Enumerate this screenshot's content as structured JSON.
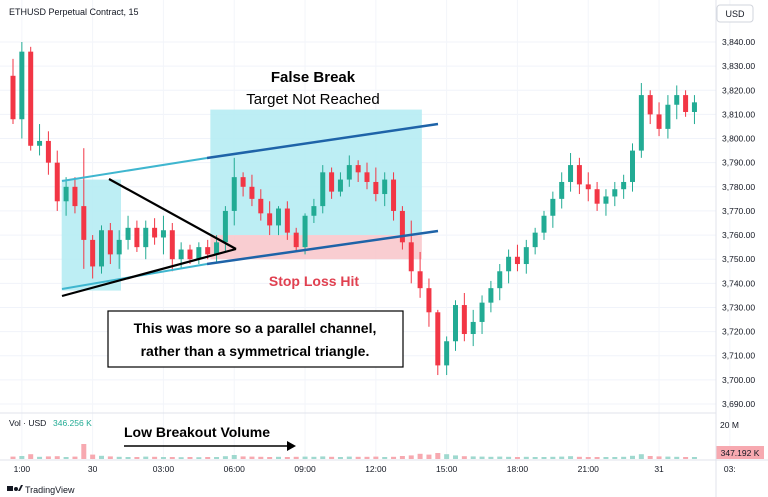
{
  "header": {
    "symbol": "ETHUSD Perpetual Contract, 15",
    "currency_button": "USD"
  },
  "volume_panel": {
    "label": "Vol · USD",
    "value": "346.256 K",
    "axis_label": "20 M",
    "current_badge": "347.192 K"
  },
  "annotations": {
    "false_break_title": "False Break",
    "false_break_subtitle": "Target Not Reached",
    "stop_loss": "Stop Loss Hit",
    "note_line1": "This was more so a parallel channel,",
    "note_line2": "rather than a symmetrical triangle.",
    "low_volume": "Low Breakout Volume"
  },
  "footer": {
    "brand": "TradingView"
  },
  "colors": {
    "up": "#22ab94",
    "down": "#f23645",
    "up_vol": "#9fd9cf",
    "down_vol": "#f7a9b0",
    "zone": "#b2ebf2",
    "stop_zone": "#f8c8cc",
    "channel_upper": "#1e63a8",
    "channel_lower": "#1e63a8",
    "channel_light": "#3fb6cf",
    "stop_text": "#e04050"
  },
  "chart_data": {
    "type": "candlestick",
    "ylim": [
      3686,
      3845
    ],
    "y_ticks": [
      3690,
      3700,
      3710,
      3720,
      3730,
      3740,
      3750,
      3760,
      3770,
      3780,
      3790,
      3800,
      3810,
      3820,
      3830,
      3840
    ],
    "y_tick_labels": [
      "3,690.00",
      "3,700.00",
      "3,710.00",
      "3,720.00",
      "3,730.00",
      "3,740.00",
      "3,750.00",
      "3,760.00",
      "3,770.00",
      "3,780.00",
      "3,790.00",
      "3,800.00",
      "3,810.00",
      "3,820.00",
      "3,830.00",
      "3,840.00"
    ],
    "x_ticks": [
      {
        "index": 1,
        "label": "1:00"
      },
      {
        "index": 9,
        "label": "30"
      },
      {
        "index": 17,
        "label": "03:00"
      },
      {
        "index": 25,
        "label": "06:00"
      },
      {
        "index": 33,
        "label": "09:00"
      },
      {
        "index": 41,
        "label": "12:00"
      },
      {
        "index": 49,
        "label": "15:00"
      },
      {
        "index": 57,
        "label": "18:00"
      },
      {
        "index": 65,
        "label": "21:00"
      },
      {
        "index": 73,
        "label": "31"
      },
      {
        "index": 81,
        "label": "03:"
      }
    ],
    "candles": [
      [
        3826,
        3833,
        3806,
        3808
      ],
      [
        3808,
        3840,
        3800,
        3836
      ],
      [
        3836,
        3838,
        3795,
        3797
      ],
      [
        3797,
        3806,
        3793,
        3799
      ],
      [
        3799,
        3803,
        3785,
        3790
      ],
      [
        3790,
        3795,
        3770,
        3774
      ],
      [
        3774,
        3784,
        3768,
        3780
      ],
      [
        3780,
        3784,
        3769,
        3772
      ],
      [
        3772,
        3796,
        3746,
        3758
      ],
      [
        3758,
        3760,
        3742,
        3747
      ],
      [
        3747,
        3764,
        3744,
        3762
      ],
      [
        3762,
        3765,
        3748,
        3752
      ],
      [
        3752,
        3762,
        3746,
        3758
      ],
      [
        3758,
        3768,
        3754,
        3763
      ],
      [
        3763,
        3766,
        3753,
        3755
      ],
      [
        3755,
        3766,
        3750,
        3763
      ],
      [
        3763,
        3767,
        3756,
        3759
      ],
      [
        3759,
        3768,
        3752,
        3762
      ],
      [
        3762,
        3765,
        3745,
        3750
      ],
      [
        3750,
        3757,
        3746,
        3754
      ],
      [
        3754,
        3756,
        3748,
        3750
      ],
      [
        3750,
        3757,
        3748,
        3755
      ],
      [
        3755,
        3758,
        3750,
        3752
      ],
      [
        3752,
        3760,
        3749,
        3757
      ],
      [
        3757,
        3772,
        3753,
        3770
      ],
      [
        3770,
        3792,
        3764,
        3784
      ],
      [
        3784,
        3786,
        3776,
        3780
      ],
      [
        3780,
        3785,
        3772,
        3775
      ],
      [
        3775,
        3779,
        3766,
        3769
      ],
      [
        3769,
        3774,
        3760,
        3764
      ],
      [
        3764,
        3772,
        3760,
        3771
      ],
      [
        3771,
        3774,
        3758,
        3761
      ],
      [
        3761,
        3763,
        3753,
        3755
      ],
      [
        3755,
        3769,
        3752,
        3768
      ],
      [
        3768,
        3775,
        3765,
        3772
      ],
      [
        3772,
        3789,
        3769,
        3786
      ],
      [
        3786,
        3788,
        3775,
        3778
      ],
      [
        3778,
        3786,
        3776,
        3783
      ],
      [
        3783,
        3793,
        3780,
        3789
      ],
      [
        3789,
        3791,
        3782,
        3786
      ],
      [
        3786,
        3790,
        3779,
        3782
      ],
      [
        3782,
        3788,
        3774,
        3777
      ],
      [
        3777,
        3786,
        3772,
        3783
      ],
      [
        3783,
        3786,
        3766,
        3770
      ],
      [
        3770,
        3772,
        3754,
        3757
      ],
      [
        3757,
        3766,
        3740,
        3745
      ],
      [
        3745,
        3753,
        3734,
        3738
      ],
      [
        3738,
        3742,
        3722,
        3728
      ],
      [
        3728,
        3729,
        3702,
        3706
      ],
      [
        3706,
        3718,
        3702,
        3716
      ],
      [
        3716,
        3733,
        3712,
        3731
      ],
      [
        3731,
        3736,
        3716,
        3719
      ],
      [
        3719,
        3729,
        3714,
        3724
      ],
      [
        3724,
        3735,
        3719,
        3732
      ],
      [
        3732,
        3741,
        3728,
        3738
      ],
      [
        3738,
        3748,
        3733,
        3745
      ],
      [
        3745,
        3754,
        3740,
        3751
      ],
      [
        3751,
        3756,
        3745,
        3748
      ],
      [
        3748,
        3758,
        3744,
        3755
      ],
      [
        3755,
        3763,
        3752,
        3761
      ],
      [
        3761,
        3770,
        3758,
        3768
      ],
      [
        3768,
        3778,
        3763,
        3775
      ],
      [
        3775,
        3786,
        3771,
        3782
      ],
      [
        3782,
        3794,
        3778,
        3789
      ],
      [
        3789,
        3792,
        3777,
        3781
      ],
      [
        3781,
        3786,
        3774,
        3779
      ],
      [
        3779,
        3782,
        3770,
        3773
      ],
      [
        3773,
        3779,
        3768,
        3776
      ],
      [
        3776,
        3782,
        3772,
        3779
      ],
      [
        3779,
        3785,
        3775,
        3782
      ],
      [
        3782,
        3798,
        3778,
        3795
      ],
      [
        3795,
        3823,
        3792,
        3818
      ],
      [
        3818,
        3820,
        3806,
        3810
      ],
      [
        3810,
        3815,
        3801,
        3804
      ],
      [
        3804,
        3818,
        3800,
        3814
      ],
      [
        3814,
        3822,
        3808,
        3818
      ],
      [
        3818,
        3820,
        3809,
        3811
      ],
      [
        3811,
        3818,
        3806,
        3815
      ]
    ],
    "volume_max": 20000000,
    "volumes": [
      1.2,
      1.5,
      2.4,
      1.1,
      1.3,
      1.4,
      1.0,
      1.2,
      7.5,
      2.2,
      1.6,
      1.3,
      1.1,
      1.0,
      1.0,
      1.2,
      1.1,
      1.0,
      1.0,
      0.9,
      1.0,
      0.9,
      1.0,
      1.0,
      1.4,
      2.0,
      1.3,
      1.2,
      1.1,
      1.0,
      1.1,
      1.0,
      1.1,
      1.2,
      1.1,
      1.3,
      1.1,
      1.0,
      1.2,
      1.1,
      1.1,
      1.2,
      1.0,
      1.1,
      1.5,
      1.8,
      2.6,
      2.2,
      3.0,
      2.4,
      1.8,
      1.4,
      1.3,
      1.2,
      1.1,
      1.2,
      1.1,
      1.0,
      1.1,
      1.0,
      1.0,
      1.1,
      1.2,
      1.4,
      1.1,
      1.0,
      1.0,
      1.0,
      1.0,
      1.1,
      1.6,
      2.4,
      1.5,
      1.3,
      1.2,
      1.1,
      1.0,
      1.0
    ]
  }
}
